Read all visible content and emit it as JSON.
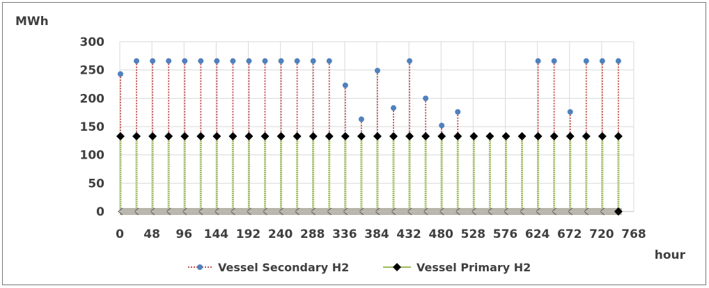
{
  "chart_data": {
    "type": "line",
    "xlabel": "hour",
    "ylabel": "MWh",
    "xlim": [
      0,
      768
    ],
    "ylim": [
      0,
      300
    ],
    "x_ticks": [
      0,
      48,
      96,
      144,
      192,
      240,
      288,
      336,
      384,
      432,
      480,
      528,
      576,
      624,
      672,
      720,
      768
    ],
    "y_ticks": [
      0,
      50,
      100,
      150,
      200,
      250,
      300
    ],
    "grid": "vertical-and-horizontal",
    "legend_position": "bottom",
    "colors": {
      "secondary": "#4f81bd",
      "secondary_drop": "#c0504d",
      "primary": "#000000",
      "primary_drop": "#9bbb59",
      "zero_band": "#b9b5ab"
    },
    "series": [
      {
        "name": "Vessel Secondary H2",
        "x": [
          1,
          25,
          49,
          73,
          97,
          121,
          145,
          169,
          193,
          217,
          241,
          265,
          289,
          313,
          337,
          361,
          385,
          409,
          433,
          457,
          481,
          505,
          625,
          649,
          673,
          697,
          721,
          745
        ],
        "y": [
          243,
          266,
          266,
          266,
          266,
          266,
          266,
          266,
          266,
          266,
          266,
          266,
          266,
          266,
          223,
          163,
          249,
          183,
          266,
          200,
          152,
          176,
          266,
          266,
          176,
          266,
          266,
          266
        ]
      },
      {
        "name": "Vessel Primary H2",
        "x": [
          1,
          25,
          49,
          73,
          97,
          121,
          145,
          169,
          193,
          217,
          241,
          265,
          289,
          313,
          337,
          361,
          385,
          409,
          433,
          457,
          481,
          505,
          529,
          553,
          577,
          601,
          625,
          649,
          673,
          697,
          721,
          745
        ],
        "y": [
          133,
          133,
          133,
          133,
          133,
          133,
          133,
          133,
          133,
          133,
          133,
          133,
          133,
          133,
          133,
          133,
          133,
          133,
          133,
          133,
          133,
          133,
          133,
          133,
          133,
          133,
          133,
          133,
          133,
          133,
          133,
          133
        ]
      }
    ]
  }
}
